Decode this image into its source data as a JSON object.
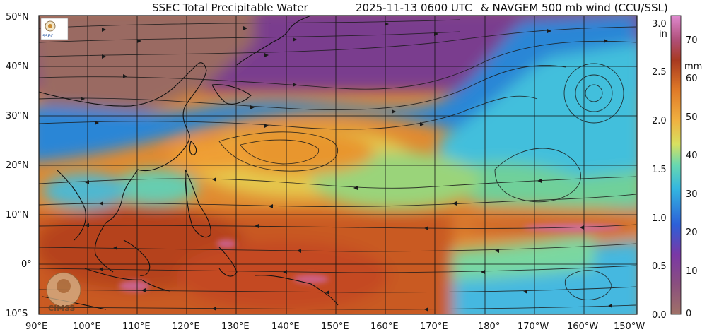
{
  "title": {
    "left": "SSEC Total Precipitable Water",
    "center": "2025-11-13 0600 UTC",
    "right": "& NAVGEM 500 mb wind (CCU/SSL)"
  },
  "lat_labels": [
    "50°N",
    "40°N",
    "30°N",
    "20°N",
    "10°N",
    "0°",
    "10°S"
  ],
  "lon_labels": [
    "90°E",
    "100°E",
    "110°E",
    "120°E",
    "130°E",
    "140°E",
    "150°E",
    "160°E",
    "170°E",
    "180°",
    "170°W",
    "160°W",
    "150°W"
  ],
  "colorbar": {
    "inch_unit": "in",
    "mm_unit": "mm",
    "inch_ticks": [
      "3.0",
      "2.5",
      "2.0",
      "1.5",
      "1.0",
      "0.5",
      "0.0"
    ],
    "mm_ticks": [
      "70",
      "60",
      "50",
      "40",
      "30",
      "20",
      "10",
      "0"
    ]
  },
  "logos": {
    "ssec_text": "SSEC",
    "cimss_text": "CIMSS"
  },
  "colors": {
    "dry_brown": "#9a6a62",
    "dry_purple": "#7a3d8e",
    "blue": "#2a8fd8",
    "cyan": "#43c3d8",
    "green": "#79d88a",
    "yellow": "#e8cf52",
    "orange": "#e8912c",
    "red_brown": "#b5421e",
    "pink": "#d06bb0"
  }
}
